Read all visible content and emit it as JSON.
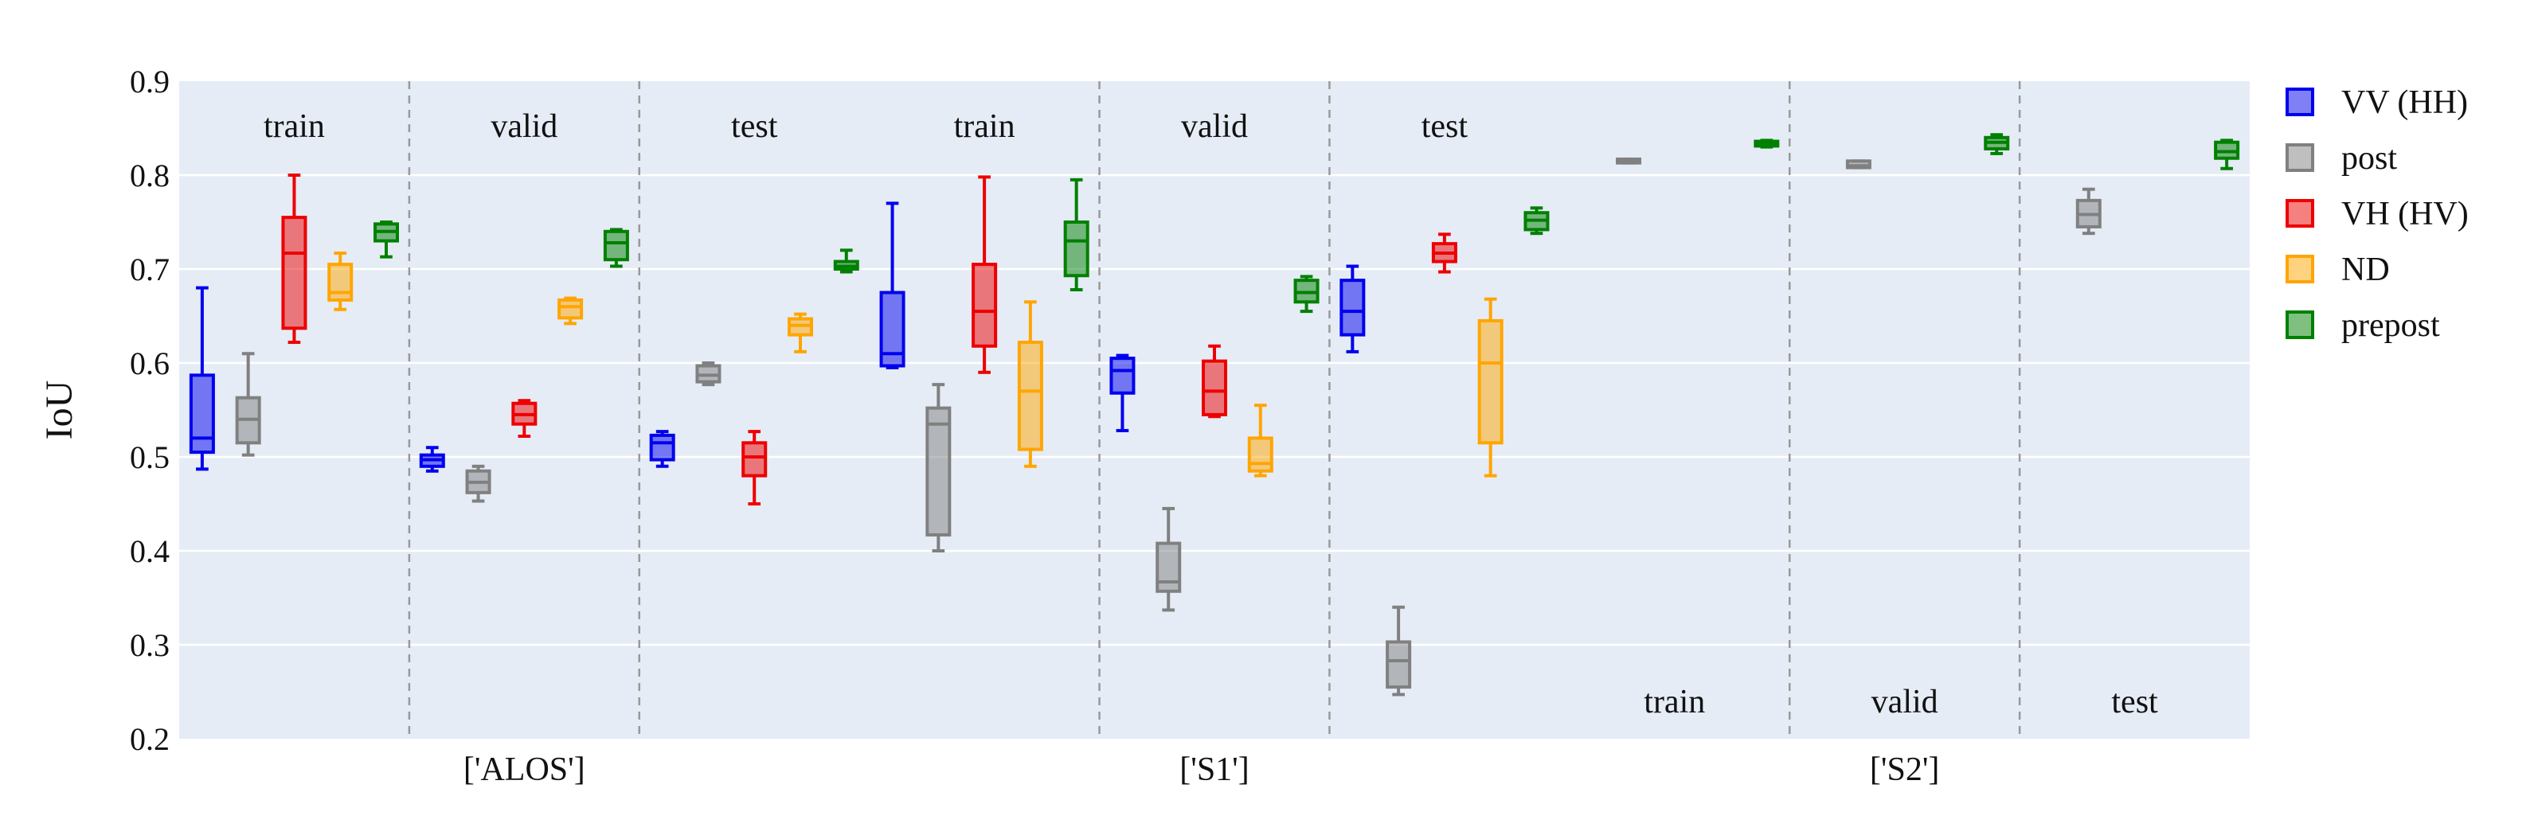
{
  "chart_data": {
    "type": "box",
    "ylabel": "IoU",
    "ylim": [
      0.2,
      0.9
    ],
    "yticks": [
      0.2,
      0.3,
      0.4,
      0.5,
      0.6,
      0.7,
      0.8,
      0.9
    ],
    "yticklabels": [
      "0.2",
      "0.3",
      "0.4",
      "0.5",
      "0.6",
      "0.7",
      "0.8",
      "0.9"
    ],
    "grid": true,
    "legend_position": "right",
    "series": [
      {
        "name": "VV (HH)",
        "color": "#0000ee"
      },
      {
        "name": "post",
        "color": "#808080"
      },
      {
        "name": "VH (HV)",
        "color": "#ee0000"
      },
      {
        "name": "ND",
        "color": "#ffa500"
      },
      {
        "name": "prepost",
        "color": "#008000"
      }
    ],
    "groups": [
      {
        "label": "['ALOS']",
        "splits": [
          {
            "label": "train",
            "boxes": [
              {
                "series": "VV (HH)",
                "min": 0.487,
                "q1": 0.505,
                "median": 0.52,
                "q3": 0.587,
                "max": 0.68
              },
              {
                "series": "post",
                "min": 0.502,
                "q1": 0.515,
                "median": 0.54,
                "q3": 0.563,
                "max": 0.61
              },
              {
                "series": "VH (HV)",
                "min": 0.622,
                "q1": 0.637,
                "median": 0.717,
                "q3": 0.755,
                "max": 0.8
              },
              {
                "series": "ND",
                "min": 0.657,
                "q1": 0.667,
                "median": 0.675,
                "q3": 0.705,
                "max": 0.717
              },
              {
                "series": "prepost",
                "min": 0.713,
                "q1": 0.73,
                "median": 0.74,
                "q3": 0.748,
                "max": 0.75
              }
            ]
          },
          {
            "label": "valid",
            "boxes": [
              {
                "series": "VV (HH)",
                "min": 0.485,
                "q1": 0.49,
                "median": 0.497,
                "q3": 0.502,
                "max": 0.51
              },
              {
                "series": "post",
                "min": 0.453,
                "q1": 0.462,
                "median": 0.473,
                "q3": 0.485,
                "max": 0.49
              },
              {
                "series": "VH (HV)",
                "min": 0.522,
                "q1": 0.535,
                "median": 0.545,
                "q3": 0.557,
                "max": 0.56
              },
              {
                "series": "ND",
                "min": 0.642,
                "q1": 0.648,
                "median": 0.66,
                "q3": 0.667,
                "max": 0.669
              },
              {
                "series": "prepost",
                "min": 0.703,
                "q1": 0.71,
                "median": 0.728,
                "q3": 0.74,
                "max": 0.742
              }
            ]
          },
          {
            "label": "test",
            "boxes": [
              {
                "series": "VV (HH)",
                "min": 0.49,
                "q1": 0.497,
                "median": 0.515,
                "q3": 0.523,
                "max": 0.527
              },
              {
                "series": "post",
                "min": 0.577,
                "q1": 0.58,
                "median": 0.587,
                "q3": 0.597,
                "max": 0.6
              },
              {
                "series": "VH (HV)",
                "min": 0.45,
                "q1": 0.48,
                "median": 0.5,
                "q3": 0.515,
                "max": 0.527
              },
              {
                "series": "ND",
                "min": 0.612,
                "q1": 0.63,
                "median": 0.64,
                "q3": 0.647,
                "max": 0.652
              },
              {
                "series": "prepost",
                "min": 0.697,
                "q1": 0.7,
                "median": 0.703,
                "q3": 0.708,
                "max": 0.72
              }
            ]
          }
        ]
      },
      {
        "label": "['S1']",
        "splits": [
          {
            "label": "train",
            "boxes": [
              {
                "series": "VV (HH)",
                "min": 0.595,
                "q1": 0.597,
                "median": 0.61,
                "q3": 0.675,
                "max": 0.77
              },
              {
                "series": "post",
                "min": 0.4,
                "q1": 0.417,
                "median": 0.535,
                "q3": 0.552,
                "max": 0.577
              },
              {
                "series": "VH (HV)",
                "min": 0.59,
                "q1": 0.618,
                "median": 0.655,
                "q3": 0.705,
                "max": 0.798
              },
              {
                "series": "ND",
                "min": 0.49,
                "q1": 0.508,
                "median": 0.57,
                "q3": 0.622,
                "max": 0.665
              },
              {
                "series": "prepost",
                "min": 0.678,
                "q1": 0.693,
                "median": 0.73,
                "q3": 0.75,
                "max": 0.795
              }
            ]
          },
          {
            "label": "valid",
            "boxes": [
              {
                "series": "VV (HH)",
                "min": 0.528,
                "q1": 0.568,
                "median": 0.592,
                "q3": 0.605,
                "max": 0.608
              },
              {
                "series": "post",
                "min": 0.337,
                "q1": 0.357,
                "median": 0.367,
                "q3": 0.408,
                "max": 0.445
              },
              {
                "series": "VH (HV)",
                "min": 0.543,
                "q1": 0.545,
                "median": 0.57,
                "q3": 0.602,
                "max": 0.618
              },
              {
                "series": "ND",
                "min": 0.48,
                "q1": 0.485,
                "median": 0.493,
                "q3": 0.52,
                "max": 0.555
              },
              {
                "series": "prepost",
                "min": 0.655,
                "q1": 0.665,
                "median": 0.675,
                "q3": 0.688,
                "max": 0.692
              }
            ]
          },
          {
            "label": "test",
            "boxes": [
              {
                "series": "VV (HH)",
                "min": 0.612,
                "q1": 0.63,
                "median": 0.655,
                "q3": 0.688,
                "max": 0.703
              },
              {
                "series": "post",
                "min": 0.247,
                "q1": 0.255,
                "median": 0.283,
                "q3": 0.303,
                "max": 0.34
              },
              {
                "series": "VH (HV)",
                "min": 0.697,
                "q1": 0.708,
                "median": 0.717,
                "q3": 0.727,
                "max": 0.737
              },
              {
                "series": "ND",
                "min": 0.48,
                "q1": 0.515,
                "median": 0.6,
                "q3": 0.645,
                "max": 0.668
              },
              {
                "series": "prepost",
                "min": 0.738,
                "q1": 0.742,
                "median": 0.752,
                "q3": 0.76,
                "max": 0.765
              }
            ]
          }
        ]
      },
      {
        "label": "['S2']",
        "splits": [
          {
            "label": "train",
            "boxes": [
              {
                "series": "post",
                "min": 0.813,
                "q1": 0.813,
                "median": 0.815,
                "q3": 0.817,
                "max": 0.817
              },
              {
                "series": "prepost",
                "min": 0.83,
                "q1": 0.831,
                "median": 0.834,
                "q3": 0.836,
                "max": 0.837
              }
            ]
          },
          {
            "label": "valid",
            "boxes": [
              {
                "series": "post",
                "min": 0.808,
                "q1": 0.808,
                "median": 0.81,
                "q3": 0.815,
                "max": 0.815
              },
              {
                "series": "prepost",
                "min": 0.823,
                "q1": 0.828,
                "median": 0.835,
                "q3": 0.84,
                "max": 0.843
              }
            ]
          },
          {
            "label": "test",
            "boxes": [
              {
                "series": "post",
                "min": 0.738,
                "q1": 0.745,
                "median": 0.758,
                "q3": 0.773,
                "max": 0.785
              },
              {
                "series": "prepost",
                "min": 0.807,
                "q1": 0.818,
                "median": 0.825,
                "q3": 0.835,
                "max": 0.837
              }
            ]
          }
        ]
      }
    ]
  }
}
